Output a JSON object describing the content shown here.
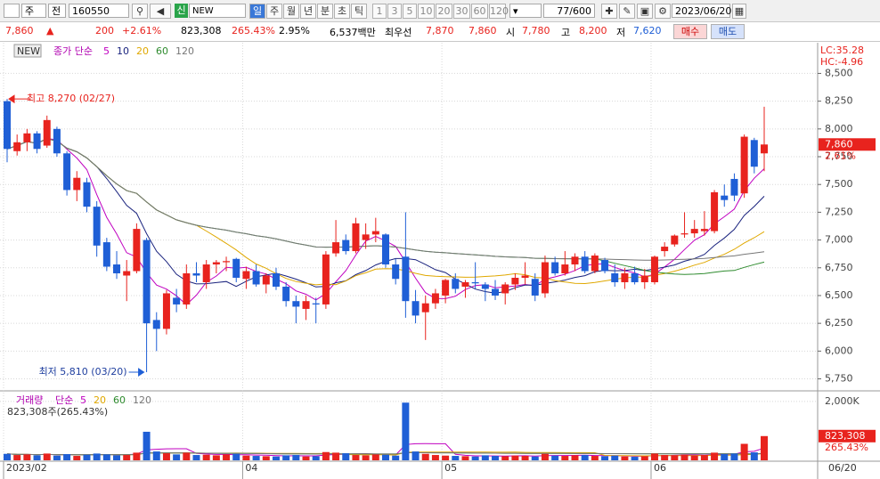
{
  "toolbar": {
    "market": "주",
    "kind": "전",
    "code": "160550",
    "badge": "신",
    "name": "NEW",
    "periods": [
      "일",
      "주",
      "월",
      "년",
      "분",
      "초",
      "틱"
    ],
    "minutes": [
      "1",
      "3",
      "5",
      "10",
      "20",
      "30",
      "60",
      "120"
    ],
    "count": "77/600",
    "date": "2023/06/20"
  },
  "quote": {
    "price": "7,860",
    "arrow": "▲",
    "change": "200",
    "rate": "+2.61%",
    "volume": "823,308",
    "volume_ratio": "265.43%",
    "turnover": "2.95%",
    "amount": "6,537백만",
    "best_label": "최우선",
    "ask": "7,870",
    "bid": "7,860",
    "open_label": "시",
    "open": "7,780",
    "high_label": "고",
    "high": "8,200",
    "low_label": "저",
    "low": "7,620",
    "buy": "매수",
    "sell": "매도"
  },
  "chart": {
    "type": "candlestick",
    "badge": "NEW",
    "ma_title": "종가 단순",
    "ma": [
      {
        "period": 5,
        "color": "#c000c0"
      },
      {
        "period": 10,
        "color": "#1a237e"
      },
      {
        "period": 20,
        "color": "#e0a800"
      },
      {
        "period": 60,
        "color": "#2e8b2e"
      },
      {
        "period": 120,
        "color": "#777777"
      }
    ],
    "lc": "LC:35.28",
    "hc": "HC:-4.96",
    "max_label": "최고 8,270 (02/27)",
    "min_label": "최저 5,810 (03/20)",
    "last_price": "7,860",
    "last_rate": "2.61%",
    "up_color": "#e8231e",
    "down_color": "#1f5fd6",
    "ylim": [
      5650,
      8760
    ],
    "yticks": [
      {
        "value": 5750,
        "label": "5,750"
      },
      {
        "value": 6000,
        "label": "6,000"
      },
      {
        "value": 6250,
        "label": "6,250"
      },
      {
        "value": 6500,
        "label": "6,500"
      },
      {
        "value": 6750,
        "label": "6,750"
      },
      {
        "value": 7000,
        "label": "7,000"
      },
      {
        "value": 7250,
        "label": "7,250"
      },
      {
        "value": 7500,
        "label": "7,500"
      },
      {
        "value": 7750,
        "label": "7,750"
      },
      {
        "value": 8000,
        "label": "8,000"
      },
      {
        "value": 8250,
        "label": "8,250"
      },
      {
        "value": 8500,
        "label": "8,500"
      }
    ],
    "categories": [
      "2023/02",
      null,
      null,
      null,
      null,
      null,
      null,
      null,
      null,
      null,
      null,
      null,
      null,
      null,
      null,
      null,
      null,
      null,
      null,
      null,
      null,
      null,
      null,
      null,
      "04",
      null,
      null,
      null,
      null,
      null,
      null,
      null,
      null,
      null,
      null,
      null,
      null,
      null,
      null,
      null,
      null,
      null,
      null,
      null,
      "05",
      null,
      null,
      null,
      null,
      null,
      null,
      null,
      null,
      null,
      null,
      null,
      null,
      null,
      null,
      null,
      null,
      null,
      null,
      null,
      null,
      "06",
      null,
      null,
      null,
      null,
      null,
      null,
      null,
      null,
      null,
      null,
      null
    ],
    "last_date": "06/20",
    "ohlc": [
      [
        8250,
        8270,
        7700,
        7820
      ],
      [
        7800,
        7950,
        7760,
        7880
      ],
      [
        7880,
        8000,
        7800,
        7960
      ],
      [
        7960,
        7980,
        7780,
        7820
      ],
      [
        7850,
        8120,
        7830,
        8080
      ],
      [
        8000,
        8020,
        7750,
        7780
      ],
      [
        7780,
        7800,
        7400,
        7450
      ],
      [
        7450,
        7620,
        7350,
        7560
      ],
      [
        7520,
        7560,
        7250,
        7300
      ],
      [
        7300,
        7350,
        6850,
        6950
      ],
      [
        6980,
        7020,
        6720,
        6760
      ],
      [
        6780,
        6900,
        6650,
        6700
      ],
      [
        6680,
        6820,
        6450,
        6720
      ],
      [
        6720,
        7150,
        6700,
        7100
      ],
      [
        7000,
        7020,
        5810,
        6250
      ],
      [
        6280,
        6350,
        6000,
        6200
      ],
      [
        6200,
        6550,
        6150,
        6520
      ],
      [
        6480,
        6560,
        6350,
        6420
      ],
      [
        6420,
        6780,
        6380,
        6700
      ],
      [
        6700,
        6800,
        6620,
        6680
      ],
      [
        6620,
        6820,
        6560,
        6780
      ],
      [
        6780,
        6820,
        6700,
        6800
      ],
      [
        6800,
        6850,
        6720,
        6810
      ],
      [
        6830,
        6840,
        6620,
        6660
      ],
      [
        6650,
        6760,
        6560,
        6720
      ],
      [
        6720,
        6780,
        6580,
        6600
      ],
      [
        6600,
        6700,
        6520,
        6680
      ],
      [
        6700,
        6750,
        6550,
        6580
      ],
      [
        6580,
        6620,
        6400,
        6450
      ],
      [
        6450,
        6500,
        6250,
        6400
      ],
      [
        6380,
        6500,
        6280,
        6450
      ],
      [
        6430,
        6480,
        6250,
        6420
      ],
      [
        6420,
        6900,
        6380,
        6870
      ],
      [
        6880,
        7180,
        6850,
        6980
      ],
      [
        7000,
        7050,
        6870,
        6900
      ],
      [
        6900,
        7200,
        6880,
        7150
      ],
      [
        7000,
        7150,
        6920,
        7050
      ],
      [
        7050,
        7200,
        6980,
        7080
      ],
      [
        7050,
        7060,
        6750,
        6780
      ],
      [
        6780,
        6830,
        6600,
        6650
      ],
      [
        6850,
        7250,
        6300,
        6450
      ],
      [
        6450,
        6550,
        6250,
        6320
      ],
      [
        6350,
        6500,
        6100,
        6430
      ],
      [
        6430,
        6560,
        6380,
        6520
      ],
      [
        6500,
        6650,
        6430,
        6640
      ],
      [
        6650,
        6700,
        6520,
        6560
      ],
      [
        6580,
        6640,
        6480,
        6620
      ],
      [
        6620,
        6800,
        6560,
        6610
      ],
      [
        6600,
        6620,
        6450,
        6560
      ],
      [
        6560,
        6640,
        6460,
        6500
      ],
      [
        6520,
        6620,
        6420,
        6600
      ],
      [
        6600,
        6700,
        6550,
        6660
      ],
      [
        6660,
        6800,
        6600,
        6680
      ],
      [
        6650,
        6700,
        6450,
        6500
      ],
      [
        6520,
        6860,
        6480,
        6800
      ],
      [
        6800,
        6850,
        6680,
        6700
      ],
      [
        6700,
        6900,
        6680,
        6780
      ],
      [
        6780,
        6880,
        6720,
        6850
      ],
      [
        6850,
        6900,
        6700,
        6720
      ],
      [
        6720,
        6880,
        6700,
        6860
      ],
      [
        6820,
        6840,
        6700,
        6720
      ],
      [
        6700,
        6780,
        6580,
        6620
      ],
      [
        6620,
        6750,
        6560,
        6700
      ],
      [
        6700,
        6760,
        6600,
        6620
      ],
      [
        6620,
        6740,
        6560,
        6680
      ],
      [
        6620,
        6860,
        6600,
        6850
      ],
      [
        6900,
        6980,
        6850,
        6940
      ],
      [
        6960,
        7050,
        6940,
        7040
      ],
      [
        7050,
        7250,
        7020,
        7060
      ],
      [
        7060,
        7180,
        7020,
        7100
      ],
      [
        7080,
        7260,
        7040,
        7100
      ],
      [
        7080,
        7450,
        7060,
        7430
      ],
      [
        7400,
        7500,
        7300,
        7360
      ],
      [
        7550,
        7600,
        7350,
        7400
      ],
      [
        7420,
        7950,
        7380,
        7930
      ],
      [
        7900,
        7920,
        7600,
        7660
      ],
      [
        7780,
        8200,
        7620,
        7860
      ]
    ],
    "volume": {
      "title": "거래량",
      "ma_title": "단순",
      "ma": [
        {
          "period": 5,
          "color": "#c000c0"
        },
        {
          "period": 20,
          "color": "#e0a800"
        },
        {
          "period": 60,
          "color": "#2e8b2e"
        },
        {
          "period": 120,
          "color": "#777777"
        }
      ],
      "summary": "823,308주(265.43%)",
      "last_label": "823,308",
      "last_ratio": "265.43%",
      "ylim": [
        0,
        2300000
      ],
      "yticks": [
        {
          "value": 2000000,
          "label": "2,000K"
        }
      ],
      "values": [
        220000,
        180000,
        200000,
        170000,
        230000,
        160000,
        210000,
        150000,
        190000,
        230000,
        200000,
        170000,
        180000,
        260000,
        970000,
        300000,
        240000,
        200000,
        260000,
        180000,
        190000,
        170000,
        200000,
        220000,
        160000,
        150000,
        140000,
        130000,
        170000,
        180000,
        130000,
        140000,
        280000,
        260000,
        240000,
        180000,
        170000,
        200000,
        190000,
        160000,
        1960000,
        300000,
        220000,
        180000,
        160000,
        150000,
        140000,
        130000,
        170000,
        150000,
        140000,
        160000,
        150000,
        130000,
        220000,
        160000,
        150000,
        170000,
        180000,
        150000,
        140000,
        160000,
        130000,
        120000,
        140000,
        230000,
        180000,
        170000,
        190000,
        160000,
        180000,
        260000,
        210000,
        230000,
        560000,
        270000,
        823308
      ]
    }
  }
}
